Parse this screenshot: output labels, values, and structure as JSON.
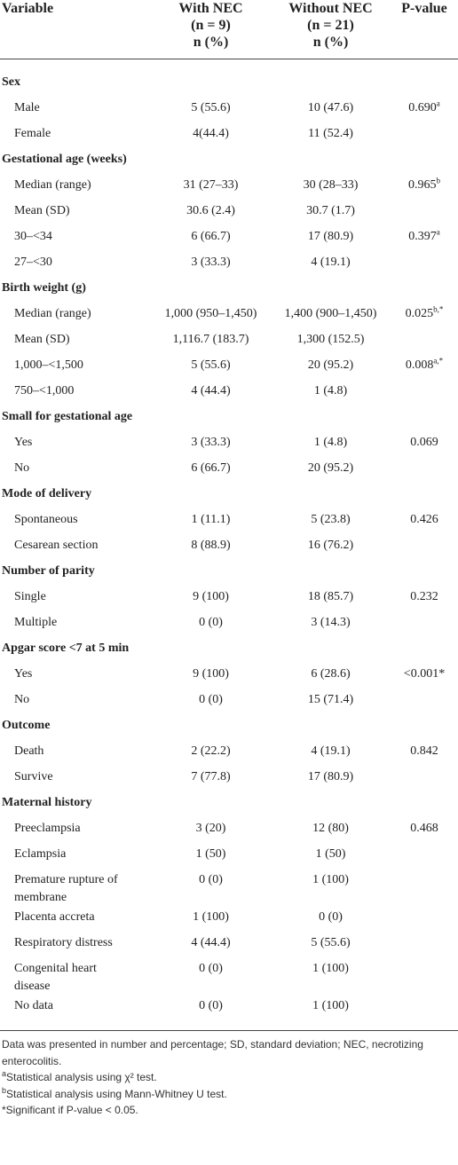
{
  "columns": [
    {
      "lines": [
        "Variable"
      ]
    },
    {
      "lines": [
        "With NEC",
        "(n = 9)",
        "n (%)"
      ]
    },
    {
      "lines": [
        "Without NEC",
        "(n = 21)",
        "n (%)"
      ]
    },
    {
      "lines": [
        "P-value"
      ]
    }
  ],
  "sections": [
    {
      "title": "Sex",
      "rows": [
        {
          "label": "Male",
          "with": "5 (55.6)",
          "without": "10 (47.6)",
          "p": "0.690",
          "p_note": "a"
        },
        {
          "label": "Female",
          "with": "4(44.4)",
          "without": "11 (52.4)"
        }
      ]
    },
    {
      "title": "Gestational age (weeks)",
      "rows": [
        {
          "label": "Median (range)",
          "with": "31 (27–33)",
          "without": "30 (28–33)",
          "p": "0.965",
          "p_note": "b"
        },
        {
          "label": "Mean (SD)",
          "with": "30.6 (2.4)",
          "without": "30.7 (1.7)"
        },
        {
          "label": "30–<34",
          "with": "6 (66.7)",
          "without": "17 (80.9)",
          "p": "0.397",
          "p_note": "a"
        },
        {
          "label": "27–<30",
          "with": "3 (33.3)",
          "without": "4 (19.1)"
        }
      ]
    },
    {
      "title": "Birth weight (g)",
      "rows": [
        {
          "label": "Median (range)",
          "with": "1,000 (950–1,450)",
          "without": "1,400 (900–1,450)",
          "p": "0.025",
          "p_note": "b,*"
        },
        {
          "label": "Mean (SD)",
          "with": "1,116.7 (183.7)",
          "without": "1,300 (152.5)"
        },
        {
          "label": "1,000–<1,500",
          "with": "5 (55.6)",
          "without": "20 (95.2)",
          "p": "0.008",
          "p_note": "a,*"
        },
        {
          "label": "750–<1,000",
          "with": "4 (44.4)",
          "without": "1 (4.8)"
        }
      ]
    },
    {
      "title": "Small for gestational age",
      "rows": [
        {
          "label": "Yes",
          "with": "3 (33.3)",
          "without": "1 (4.8)",
          "p": "0.069"
        },
        {
          "label": "No",
          "with": "6 (66.7)",
          "without": "20 (95.2)"
        }
      ]
    },
    {
      "title": "Mode of delivery",
      "rows": [
        {
          "label": "Spontaneous",
          "with": "1 (11.1)",
          "without": "5 (23.8)",
          "p": "0.426"
        },
        {
          "label": "Cesarean section",
          "with": "8 (88.9)",
          "without": "16 (76.2)"
        }
      ]
    },
    {
      "title": "Number of parity",
      "rows": [
        {
          "label": "Single",
          "with": "9 (100)",
          "without": "18 (85.7)",
          "p": "0.232"
        },
        {
          "label": "Multiple",
          "with": "0 (0)",
          "without": "3 (14.3)"
        }
      ]
    },
    {
      "title": "Apgar score <7 at 5 min",
      "rows": [
        {
          "label": "Yes",
          "with": "9 (100)",
          "without": "6 (28.6)",
          "p": "<0.001*"
        },
        {
          "label": "No",
          "with": "0 (0)",
          "without": "15 (71.4)"
        }
      ]
    },
    {
      "title": "Outcome",
      "rows": [
        {
          "label": "Death",
          "with": "2 (22.2)",
          "without": "4 (19.1)",
          "p": "0.842"
        },
        {
          "label": "Survive",
          "with": "7 (77.8)",
          "without": "17 (80.9)"
        }
      ]
    },
    {
      "title": "Maternal history",
      "rows": [
        {
          "label": "Preeclampsia",
          "with": "3 (20)",
          "without": "12 (80)",
          "p": "0.468"
        },
        {
          "label": "Eclampsia",
          "with": "1 (50)",
          "without": "1 (50)"
        },
        {
          "label": "Premature rupture of membrane",
          "with": "0 (0)",
          "without": "1 (100)"
        },
        {
          "label": "Placenta accreta",
          "with": "1 (100)",
          "without": "0 (0)"
        },
        {
          "label": "Respiratory distress",
          "with": "4 (44.4)",
          "without": "5 (55.6)"
        },
        {
          "label": "Congenital heart disease",
          "with": "0 (0)",
          "without": "1 (100)"
        },
        {
          "label": "No data",
          "with": "0 (0)",
          "without": "1 (100)"
        }
      ]
    }
  ],
  "footnotes": [
    {
      "text": "Data was presented in number and percentage; SD, standard deviation; NEC, necrotizing enterocolitis."
    },
    {
      "mark": "a",
      "text": "Statistical analysis using χ² test."
    },
    {
      "mark": "b",
      "text": "Statistical analysis using Mann-Whitney U test."
    },
    {
      "text": "*Significant if P-value < 0.05."
    }
  ]
}
